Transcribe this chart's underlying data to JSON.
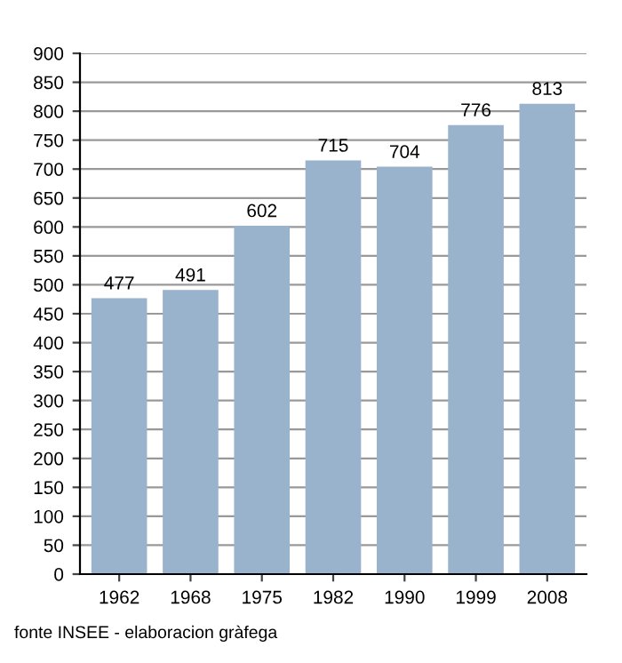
{
  "chart_data": {
    "type": "bar",
    "categories": [
      "1962",
      "1968",
      "1975",
      "1982",
      "1990",
      "1999",
      "2008"
    ],
    "values": [
      477,
      491,
      602,
      715,
      704,
      776,
      813
    ],
    "color": "#9ab3cc",
    "data_labels": true,
    "ylim": [
      0,
      900
    ],
    "yticks": [
      0,
      50,
      100,
      150,
      200,
      250,
      300,
      350,
      400,
      450,
      500,
      550,
      600,
      650,
      700,
      750,
      800,
      850,
      900
    ],
    "grid": "y",
    "annotations": [
      "fonte INSEE - elaboracion gràfega"
    ]
  }
}
